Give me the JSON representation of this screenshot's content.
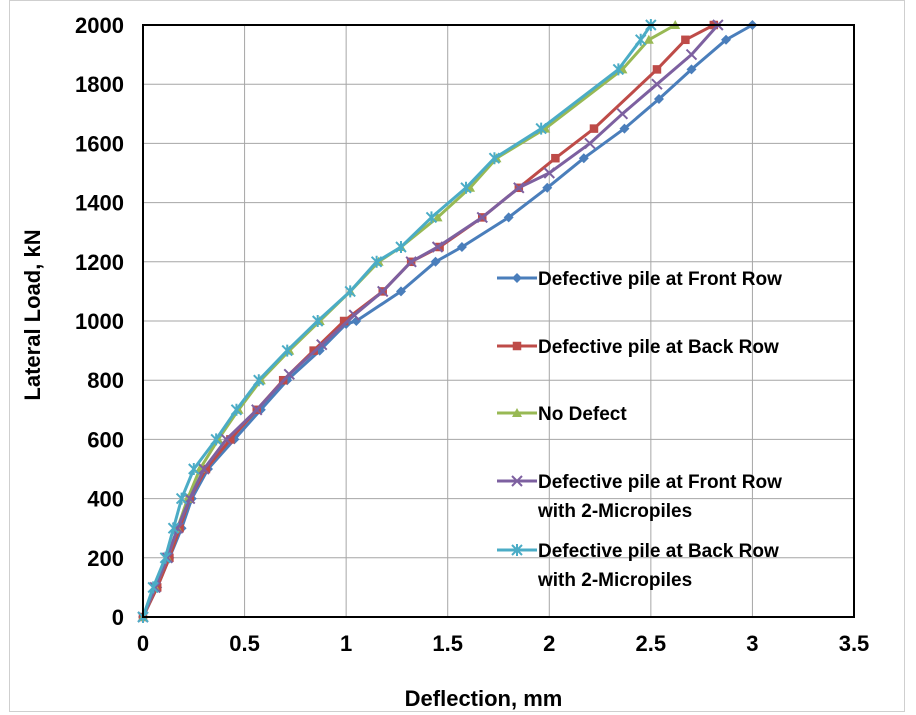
{
  "chart_data": {
    "type": "line",
    "title": "",
    "xlabel": "Deflection, mm",
    "ylabel": "Lateral Load, kN",
    "xlim": [
      0,
      3.5
    ],
    "ylim": [
      0,
      2000
    ],
    "x_ticks": [
      "0",
      "0.5",
      "1",
      "1.5",
      "2",
      "2.5",
      "3",
      "3.5"
    ],
    "y_ticks": [
      "0",
      "200",
      "400",
      "600",
      "800",
      "1000",
      "1200",
      "1400",
      "1600",
      "1800",
      "2000"
    ],
    "grid": true,
    "legend_position": "right-inside",
    "series": [
      {
        "name": "Defective pile at Front Row",
        "color": "#4a7ebb",
        "marker": "diamond",
        "points": [
          [
            0,
            0
          ],
          [
            0.07,
            100
          ],
          [
            0.13,
            200
          ],
          [
            0.19,
            300
          ],
          [
            0.24,
            400
          ],
          [
            0.32,
            500
          ],
          [
            0.45,
            600
          ],
          [
            0.58,
            700
          ],
          [
            0.71,
            800
          ],
          [
            0.87,
            900
          ],
          [
            1.0,
            990
          ],
          [
            1.05,
            1000
          ],
          [
            1.27,
            1100
          ],
          [
            1.44,
            1200
          ],
          [
            1.57,
            1250
          ],
          [
            1.8,
            1350
          ],
          [
            1.99,
            1450
          ],
          [
            2.17,
            1550
          ],
          [
            2.37,
            1650
          ],
          [
            2.54,
            1750
          ],
          [
            2.7,
            1850
          ],
          [
            2.87,
            1950
          ],
          [
            3.0,
            2000
          ]
        ]
      },
      {
        "name": "Defective pile at Back Row",
        "color": "#be4b48",
        "marker": "square",
        "points": [
          [
            0,
            0
          ],
          [
            0.07,
            100
          ],
          [
            0.13,
            200
          ],
          [
            0.18,
            300
          ],
          [
            0.23,
            400
          ],
          [
            0.31,
            500
          ],
          [
            0.43,
            600
          ],
          [
            0.56,
            700
          ],
          [
            0.69,
            800
          ],
          [
            0.84,
            900
          ],
          [
            0.99,
            1000
          ],
          [
            1.18,
            1100
          ],
          [
            1.32,
            1200
          ],
          [
            1.46,
            1250
          ],
          [
            1.67,
            1350
          ],
          [
            1.85,
            1450
          ],
          [
            2.03,
            1550
          ],
          [
            2.22,
            1650
          ],
          [
            2.53,
            1850
          ],
          [
            2.67,
            1950
          ],
          [
            2.81,
            2000
          ]
        ]
      },
      {
        "name": "No Defect",
        "color": "#98b954",
        "marker": "triangle",
        "points": [
          [
            0,
            0
          ],
          [
            0.06,
            100
          ],
          [
            0.12,
            200
          ],
          [
            0.17,
            300
          ],
          [
            0.22,
            400
          ],
          [
            0.28,
            500
          ],
          [
            0.37,
            600
          ],
          [
            0.47,
            700
          ],
          [
            0.58,
            800
          ],
          [
            0.72,
            900
          ],
          [
            0.87,
            1000
          ],
          [
            1.02,
            1100
          ],
          [
            1.16,
            1200
          ],
          [
            1.27,
            1250
          ],
          [
            1.45,
            1350
          ],
          [
            1.61,
            1450
          ],
          [
            1.74,
            1550
          ],
          [
            1.98,
            1650
          ],
          [
            2.36,
            1850
          ],
          [
            2.49,
            1950
          ],
          [
            2.62,
            2000
          ]
        ]
      },
      {
        "name": "Defective pile at Front Row with 2-Micropiles",
        "color": "#7d60a0",
        "marker": "x",
        "points": [
          [
            0,
            0
          ],
          [
            0.06,
            100
          ],
          [
            0.12,
            200
          ],
          [
            0.17,
            300
          ],
          [
            0.23,
            400
          ],
          [
            0.3,
            500
          ],
          [
            0.41,
            600
          ],
          [
            0.56,
            700
          ],
          [
            0.72,
            820
          ],
          [
            0.88,
            920
          ],
          [
            1.04,
            1020
          ],
          [
            1.18,
            1100
          ],
          [
            1.32,
            1200
          ],
          [
            1.45,
            1250
          ],
          [
            1.67,
            1350
          ],
          [
            1.85,
            1450
          ],
          [
            2.0,
            1500
          ],
          [
            2.2,
            1600
          ],
          [
            2.36,
            1700
          ],
          [
            2.53,
            1800
          ],
          [
            2.7,
            1900
          ],
          [
            2.83,
            2000
          ]
        ]
      },
      {
        "name": "Defective pile at Back Row with 2-Micropiles",
        "color": "#4bacc6",
        "marker": "star",
        "points": [
          [
            0,
            0
          ],
          [
            0.05,
            100
          ],
          [
            0.11,
            200
          ],
          [
            0.15,
            300
          ],
          [
            0.19,
            400
          ],
          [
            0.25,
            500
          ],
          [
            0.36,
            600
          ],
          [
            0.46,
            700
          ],
          [
            0.57,
            800
          ],
          [
            0.71,
            900
          ],
          [
            0.86,
            1000
          ],
          [
            1.02,
            1100
          ],
          [
            1.15,
            1200
          ],
          [
            1.27,
            1250
          ],
          [
            1.42,
            1350
          ],
          [
            1.59,
            1450
          ],
          [
            1.73,
            1550
          ],
          [
            1.96,
            1650
          ],
          [
            2.34,
            1850
          ],
          [
            2.45,
            1950
          ],
          [
            2.5,
            2000
          ]
        ]
      }
    ]
  }
}
